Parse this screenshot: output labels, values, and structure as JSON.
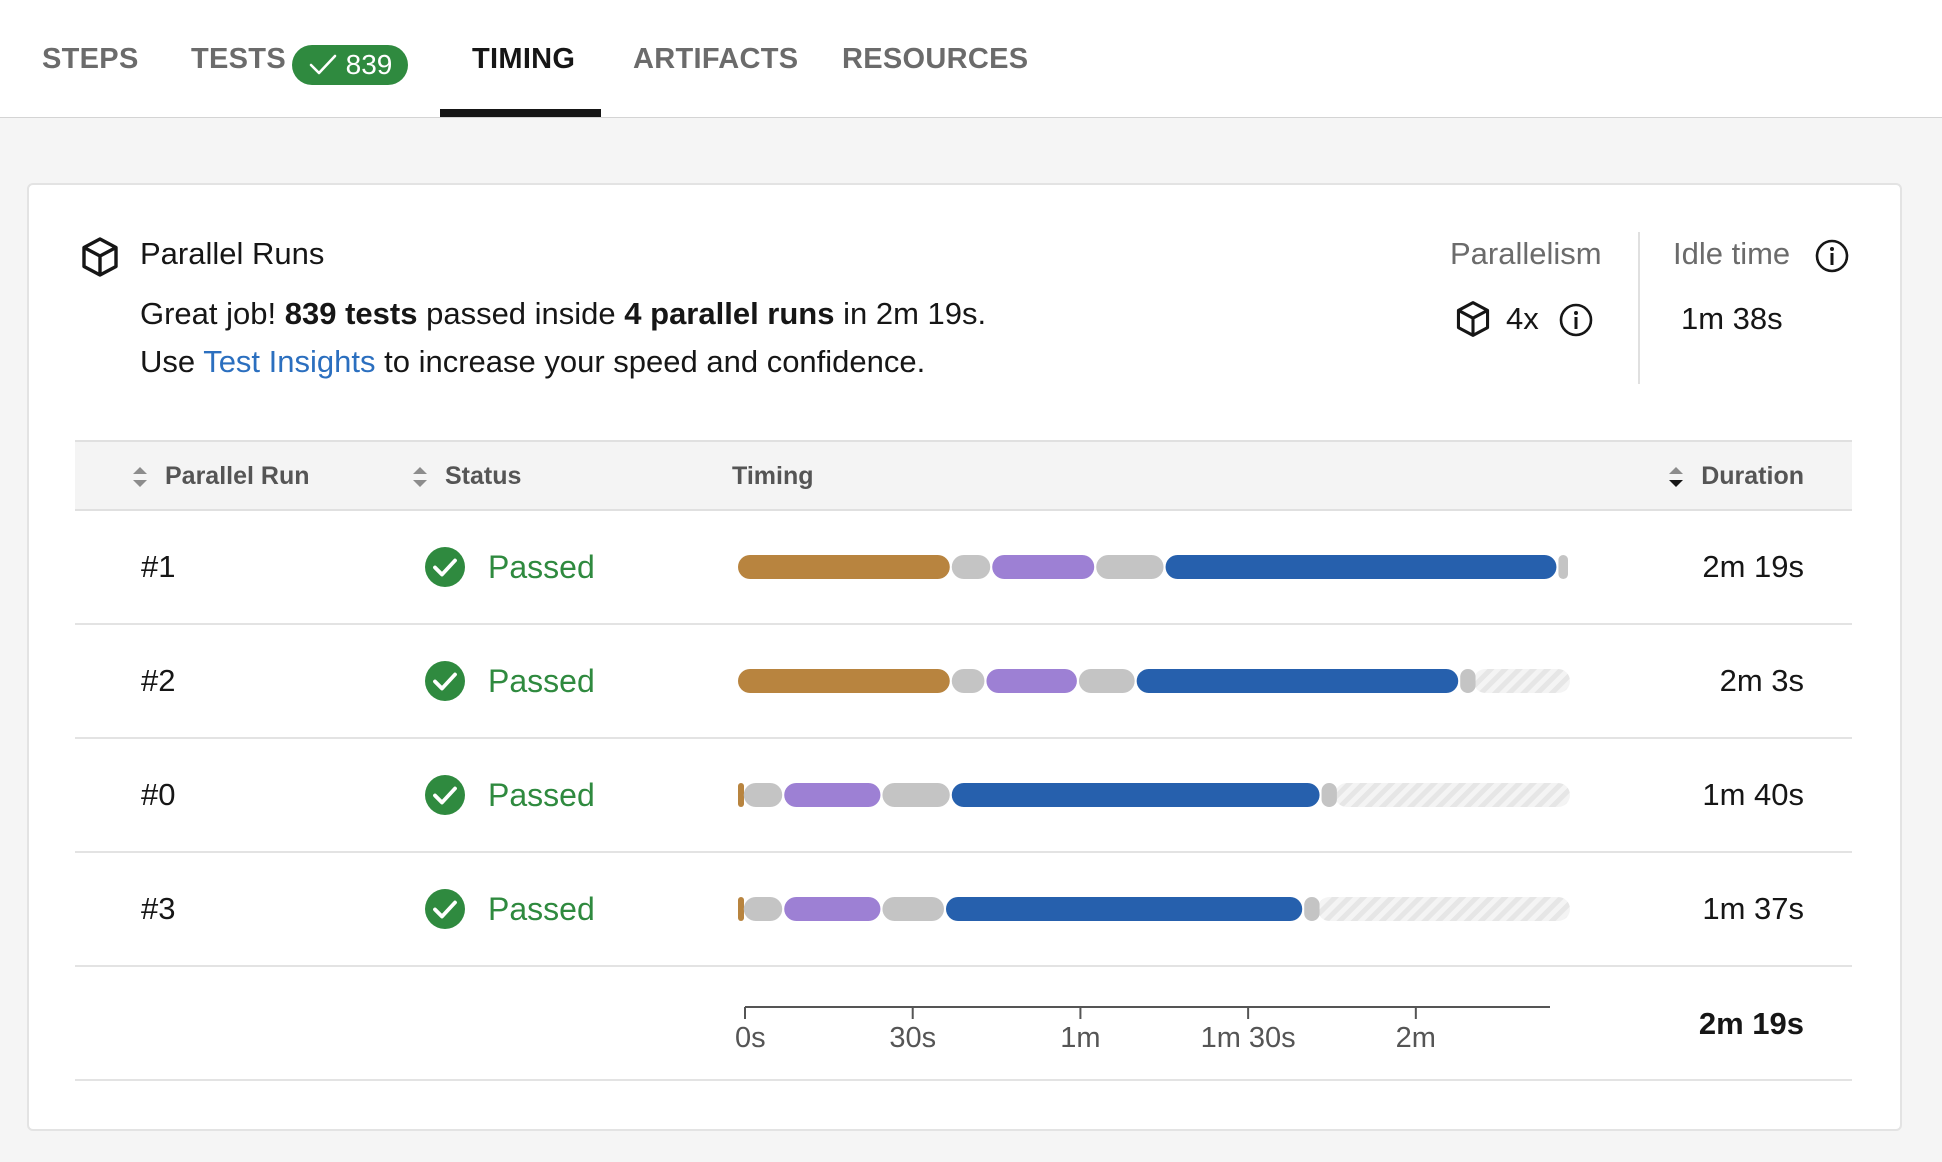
{
  "tabs": [
    {
      "label": "STEPS"
    },
    {
      "label": "TESTS"
    },
    {
      "label": "TIMING"
    },
    {
      "label": "ARTIFACTS"
    },
    {
      "label": "RESOURCES"
    }
  ],
  "tests_badge": {
    "count": "839"
  },
  "active_tab": "TIMING",
  "panel": {
    "title": "Parallel Runs",
    "summary_prefix": "Great job! ",
    "summary_tests": "839 tests",
    "summary_mid": " passed inside ",
    "summary_runs": "4 parallel runs",
    "summary_suffix": " in 2m 19s.",
    "line2_prefix": "Use ",
    "line2_link": "Test Insights",
    "line2_suffix": " to increase your speed and confidence."
  },
  "stats": {
    "parallelism_label": "Parallelism",
    "parallelism_value": "4x",
    "idle_label": "Idle time",
    "idle_value": "1m 38s"
  },
  "table": {
    "columns": {
      "run": "Parallel Run",
      "status": "Status",
      "timing": "Timing",
      "duration": "Duration"
    },
    "rows": [
      {
        "run": "#1",
        "status": "Passed",
        "duration": "2m 19s",
        "segments": [
          [
            "spin_up",
            0,
            37
          ],
          [
            "gray",
            37,
            44
          ],
          [
            "purple",
            44,
            62
          ],
          [
            "gray",
            62,
            74
          ],
          [
            "blue",
            74,
            142
          ],
          [
            "gray",
            142,
            144
          ]
        ]
      },
      {
        "run": "#2",
        "status": "Passed",
        "duration": "2m 3s",
        "segments": [
          [
            "spin_up",
            0,
            37
          ],
          [
            "gray",
            37,
            43
          ],
          [
            "purple",
            43,
            59
          ],
          [
            "gray",
            59,
            69
          ],
          [
            "blue",
            69,
            125
          ],
          [
            "gray",
            125,
            128
          ]
        ]
      },
      {
        "run": "#0",
        "status": "Passed",
        "duration": "1m 40s",
        "segments": [
          [
            "spin_up",
            0,
            1
          ],
          [
            "gray",
            1,
            8
          ],
          [
            "purple",
            8,
            25
          ],
          [
            "gray",
            25,
            37
          ],
          [
            "blue",
            37,
            101
          ],
          [
            "gray",
            101,
            104
          ]
        ]
      },
      {
        "run": "#3",
        "status": "Passed",
        "duration": "1m 37s",
        "segments": [
          [
            "spin_up",
            0,
            1
          ],
          [
            "gray",
            1,
            8
          ],
          [
            "purple",
            8,
            25
          ],
          [
            "gray",
            25,
            36
          ],
          [
            "blue",
            36,
            98
          ],
          [
            "gray",
            98,
            101
          ]
        ]
      }
    ],
    "total_seconds": 144,
    "axis_ticks": [
      "0s",
      "30s",
      "1m",
      "1m 30s",
      "2m"
    ],
    "axis_tick_seconds": [
      0,
      30,
      60,
      90,
      120
    ],
    "total_duration": "2m 19s"
  },
  "colors": {
    "spin_up": "#b8843f",
    "gray": "#c4c4c4",
    "purple": "#9d80d4",
    "blue": "#2660ad",
    "idle_hatch": "#e6e6e6",
    "passed": "#2f8a3f",
    "link": "#2b6fbf"
  }
}
